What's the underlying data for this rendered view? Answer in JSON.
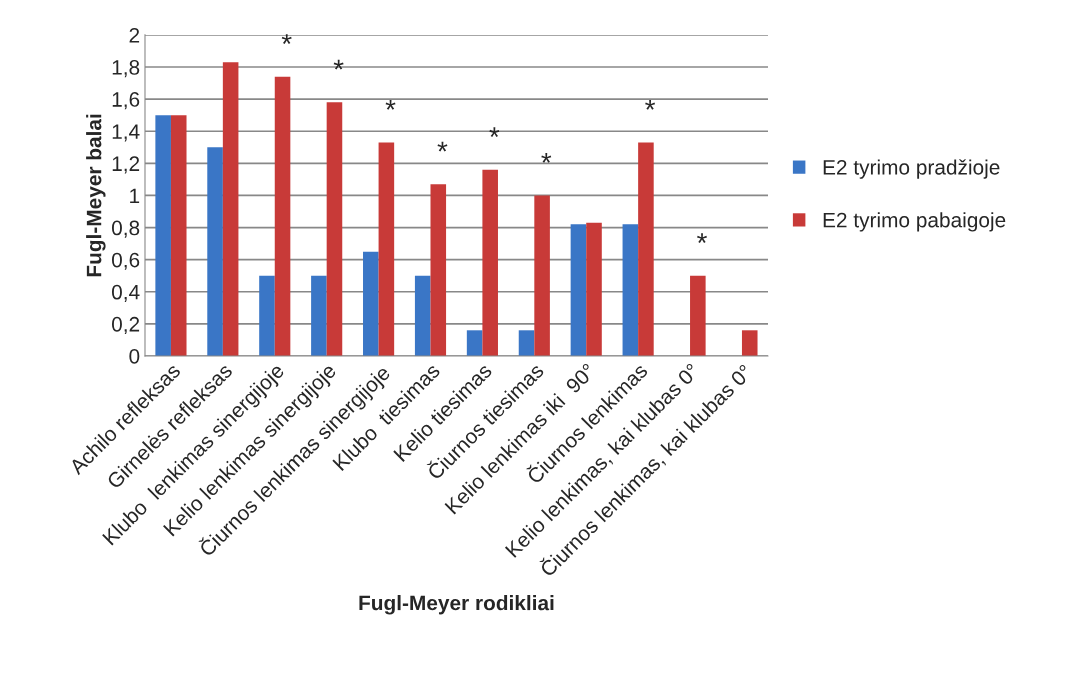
{
  "chart_data": {
    "type": "bar",
    "xlabel": "Fugl-Meyer rodikliai",
    "ylabel": "Fugl-Meyer balai",
    "categories": [
      "Achilo refleksas",
      "Girnelės refleksas",
      "Klubo  lenkimas sinergijoje",
      "Kelio lenkimas sinergijoje",
      "Čiurnos lenkimas sinergijoje",
      "Klubo  tiesimas",
      "Kelio tiesimas",
      "Čiurnos tiesimas",
      "Kelio lenkimas iki  90°",
      "Čiurnos lenkimas",
      "Kelio lenkimas, kai klubas 0°",
      "Čiurnos lenkimas, kai klubas 0°"
    ],
    "series": [
      {
        "name": "E2 tyrimo pradžioje",
        "color": "#3a76c6",
        "values": [
          1.5,
          1.3,
          0.5,
          0.5,
          0.65,
          0.5,
          0.16,
          0.16,
          0.82,
          0.82,
          0,
          0
        ]
      },
      {
        "name": "E2 tyrimo pabaigoje",
        "color": "#c83a38",
        "values": [
          1.5,
          1.83,
          1.74,
          1.58,
          1.33,
          1.07,
          1.16,
          1.0,
          0.83,
          1.33,
          0.5,
          0.16
        ]
      }
    ],
    "annotations": [
      {
        "text": "*",
        "x": "Klubo  lenkimas sinergijoje",
        "y": 1.74
      },
      {
        "text": "*",
        "x": "Kelio lenkimas sinergijoje",
        "y": 1.58
      },
      {
        "text": "*",
        "x": "Čiurnos lenkimas sinergijoje",
        "y": 1.33
      },
      {
        "text": "*",
        "x": "Klubo  tiesimas",
        "y": 1.07
      },
      {
        "text": "*",
        "x": "Kelio tiesimas",
        "y": 1.16
      },
      {
        "text": "*",
        "x": "Čiurnos tiesimas",
        "y": 1.0
      },
      {
        "text": "*",
        "x": "Čiurnos lenkimas",
        "y": 1.33
      },
      {
        "text": "*",
        "x": "Kelio lenkimas, kai klubas 0°",
        "y": 0.5
      }
    ],
    "ylim": [
      0,
      2
    ],
    "yticks": [
      0,
      {
        "value": 0.2,
        "label": "0,2"
      },
      {
        "value": 0.4,
        "label": "0,4"
      },
      {
        "value": 0.6,
        "label": "0,6"
      },
      {
        "value": 0.8,
        "label": "0,8"
      },
      1,
      {
        "value": 1.2,
        "label": "1,2"
      },
      {
        "value": 1.4,
        "label": "1,4"
      },
      {
        "value": 1.6,
        "label": "1,6"
      },
      {
        "value": 1.8,
        "label": "1,8"
      },
      2
    ],
    "grid": "y",
    "legend": "right"
  }
}
